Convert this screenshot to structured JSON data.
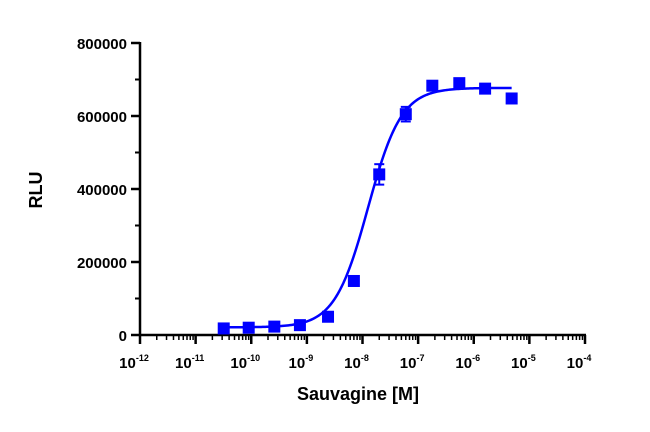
{
  "chart_data": {
    "type": "scatter",
    "title": "",
    "xlabel": "Sauvagine [M]",
    "ylabel": "RLU",
    "x_scale": "log",
    "xlim": [
      1e-12,
      0.0001
    ],
    "ylim": [
      0,
      800000
    ],
    "grid": false,
    "legend": "none",
    "x_ticks": [
      {
        "mantissa": "10",
        "exponent": "-12",
        "value": 1e-12
      },
      {
        "mantissa": "10",
        "exponent": "-11",
        "value": 1e-11
      },
      {
        "mantissa": "10",
        "exponent": "-10",
        "value": 1e-10
      },
      {
        "mantissa": "10",
        "exponent": "-9",
        "value": 1e-09
      },
      {
        "mantissa": "10",
        "exponent": "-8",
        "value": 1e-08
      },
      {
        "mantissa": "10",
        "exponent": "-7",
        "value": 1e-07
      },
      {
        "mantissa": "10",
        "exponent": "-6",
        "value": 1e-06
      },
      {
        "mantissa": "10",
        "exponent": "-5",
        "value": 1e-05
      },
      {
        "mantissa": "10",
        "exponent": "-4",
        "value": 0.0001
      }
    ],
    "y_ticks": [
      {
        "label": "0",
        "value": 0
      },
      {
        "label": "200000",
        "value": 200000
      },
      {
        "label": "400000",
        "value": 400000
      },
      {
        "label": "600000",
        "value": 600000
      },
      {
        "label": "800000",
        "value": 800000
      }
    ],
    "series": [
      {
        "color": "#0000ff",
        "marker": "square",
        "points": [
          {
            "x": 3.2e-11,
            "y": 18000,
            "err": 4000
          },
          {
            "x": 9e-11,
            "y": 20000,
            "err": 4000
          },
          {
            "x": 2.6e-10,
            "y": 23000,
            "err": 4000
          },
          {
            "x": 7.5e-10,
            "y": 27000,
            "err": 4000
          },
          {
            "x": 2.4e-09,
            "y": 50000,
            "err": 6000
          },
          {
            "x": 7e-09,
            "y": 148000,
            "err": 10000
          },
          {
            "x": 2e-08,
            "y": 440000,
            "err": 28000
          },
          {
            "x": 6e-08,
            "y": 605000,
            "err": 20000
          },
          {
            "x": 1.8e-07,
            "y": 683000,
            "err": 12000
          },
          {
            "x": 5.5e-07,
            "y": 690000,
            "err": 10000
          },
          {
            "x": 1.6e-06,
            "y": 675000,
            "err": 12000
          },
          {
            "x": 4.8e-06,
            "y": 648000,
            "err": 10000
          }
        ],
        "fit": {
          "model": "four-parameter logistic",
          "bottom": 21000,
          "top": 677000,
          "log_ec50": -7.9,
          "hill": 1.45
        }
      }
    ]
  }
}
